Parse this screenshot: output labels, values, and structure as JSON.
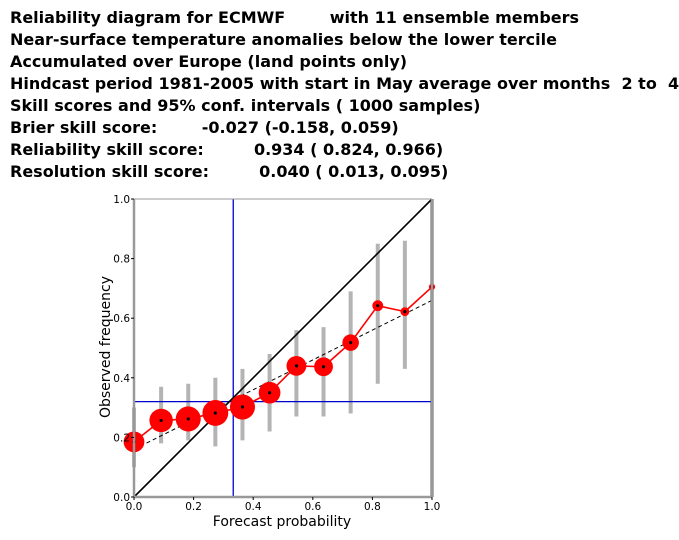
{
  "header": {
    "lines": [
      "Reliability diagram for ECMWF        with 11 ensemble members",
      "Near-surface temperature anomalies below the lower tercile",
      "Accumulated over Europe (land points only)",
      "Hindcast period 1981-2005 with start in May average over months  2 to  4",
      "Skill scores and 95% conf. intervals ( 1000 samples)",
      "Brier skill score:        -0.027 (-0.158, 0.059)",
      "Reliability skill score:         0.934 ( 0.824, 0.966)",
      "Resolution skill score:         0.040 ( 0.013, 0.095)"
    ]
  },
  "chart_data": {
    "type": "scatter",
    "xlabel": "Forecast probability",
    "ylabel": "Observed frequency",
    "xlim": [
      0.0,
      1.0
    ],
    "ylim": [
      0.0,
      1.0
    ],
    "xticks": [
      "0.0",
      "0.2",
      "0.4",
      "0.6",
      "0.8",
      "1.0"
    ],
    "yticks": [
      "0.0",
      "0.2",
      "0.4",
      "0.6",
      "0.8",
      "1.0"
    ],
    "climatology": 0.333,
    "observed_base_rate": 0.32,
    "points": [
      {
        "x": 0.0,
        "y": 0.185,
        "lo": 0.1,
        "hi": 0.3,
        "weight": 0.55
      },
      {
        "x": 0.091,
        "y": 0.257,
        "lo": 0.18,
        "hi": 0.37,
        "weight": 0.7
      },
      {
        "x": 0.182,
        "y": 0.262,
        "lo": 0.19,
        "hi": 0.38,
        "weight": 0.8
      },
      {
        "x": 0.273,
        "y": 0.282,
        "lo": 0.17,
        "hi": 0.4,
        "weight": 0.85
      },
      {
        "x": 0.364,
        "y": 0.302,
        "lo": 0.19,
        "hi": 0.43,
        "weight": 0.8
      },
      {
        "x": 0.455,
        "y": 0.35,
        "lo": 0.22,
        "hi": 0.48,
        "weight": 0.6
      },
      {
        "x": 0.545,
        "y": 0.44,
        "lo": 0.27,
        "hi": 0.56,
        "weight": 0.5
      },
      {
        "x": 0.636,
        "y": 0.437,
        "lo": 0.27,
        "hi": 0.57,
        "weight": 0.45
      },
      {
        "x": 0.727,
        "y": 0.518,
        "lo": 0.28,
        "hi": 0.69,
        "weight": 0.35
      },
      {
        "x": 0.818,
        "y": 0.642,
        "lo": 0.38,
        "hi": 0.85,
        "weight": 0.15
      },
      {
        "x": 0.909,
        "y": 0.622,
        "lo": 0.43,
        "hi": 0.86,
        "weight": 0.1
      },
      {
        "x": 1.0,
        "y": 0.705,
        "lo": 0.0,
        "hi": 1.0,
        "weight": 0.05
      }
    ],
    "regression": {
      "x0": 0.0,
      "y0": 0.16,
      "x1": 1.0,
      "y1": 0.66
    },
    "colors": {
      "diagonal": "#000000",
      "reference": "#0000cc",
      "marker": "#ff0000",
      "connector": "#ff0000",
      "errorbar": "#b4b4b4",
      "regression": "#000000",
      "frame": "#999999"
    }
  }
}
